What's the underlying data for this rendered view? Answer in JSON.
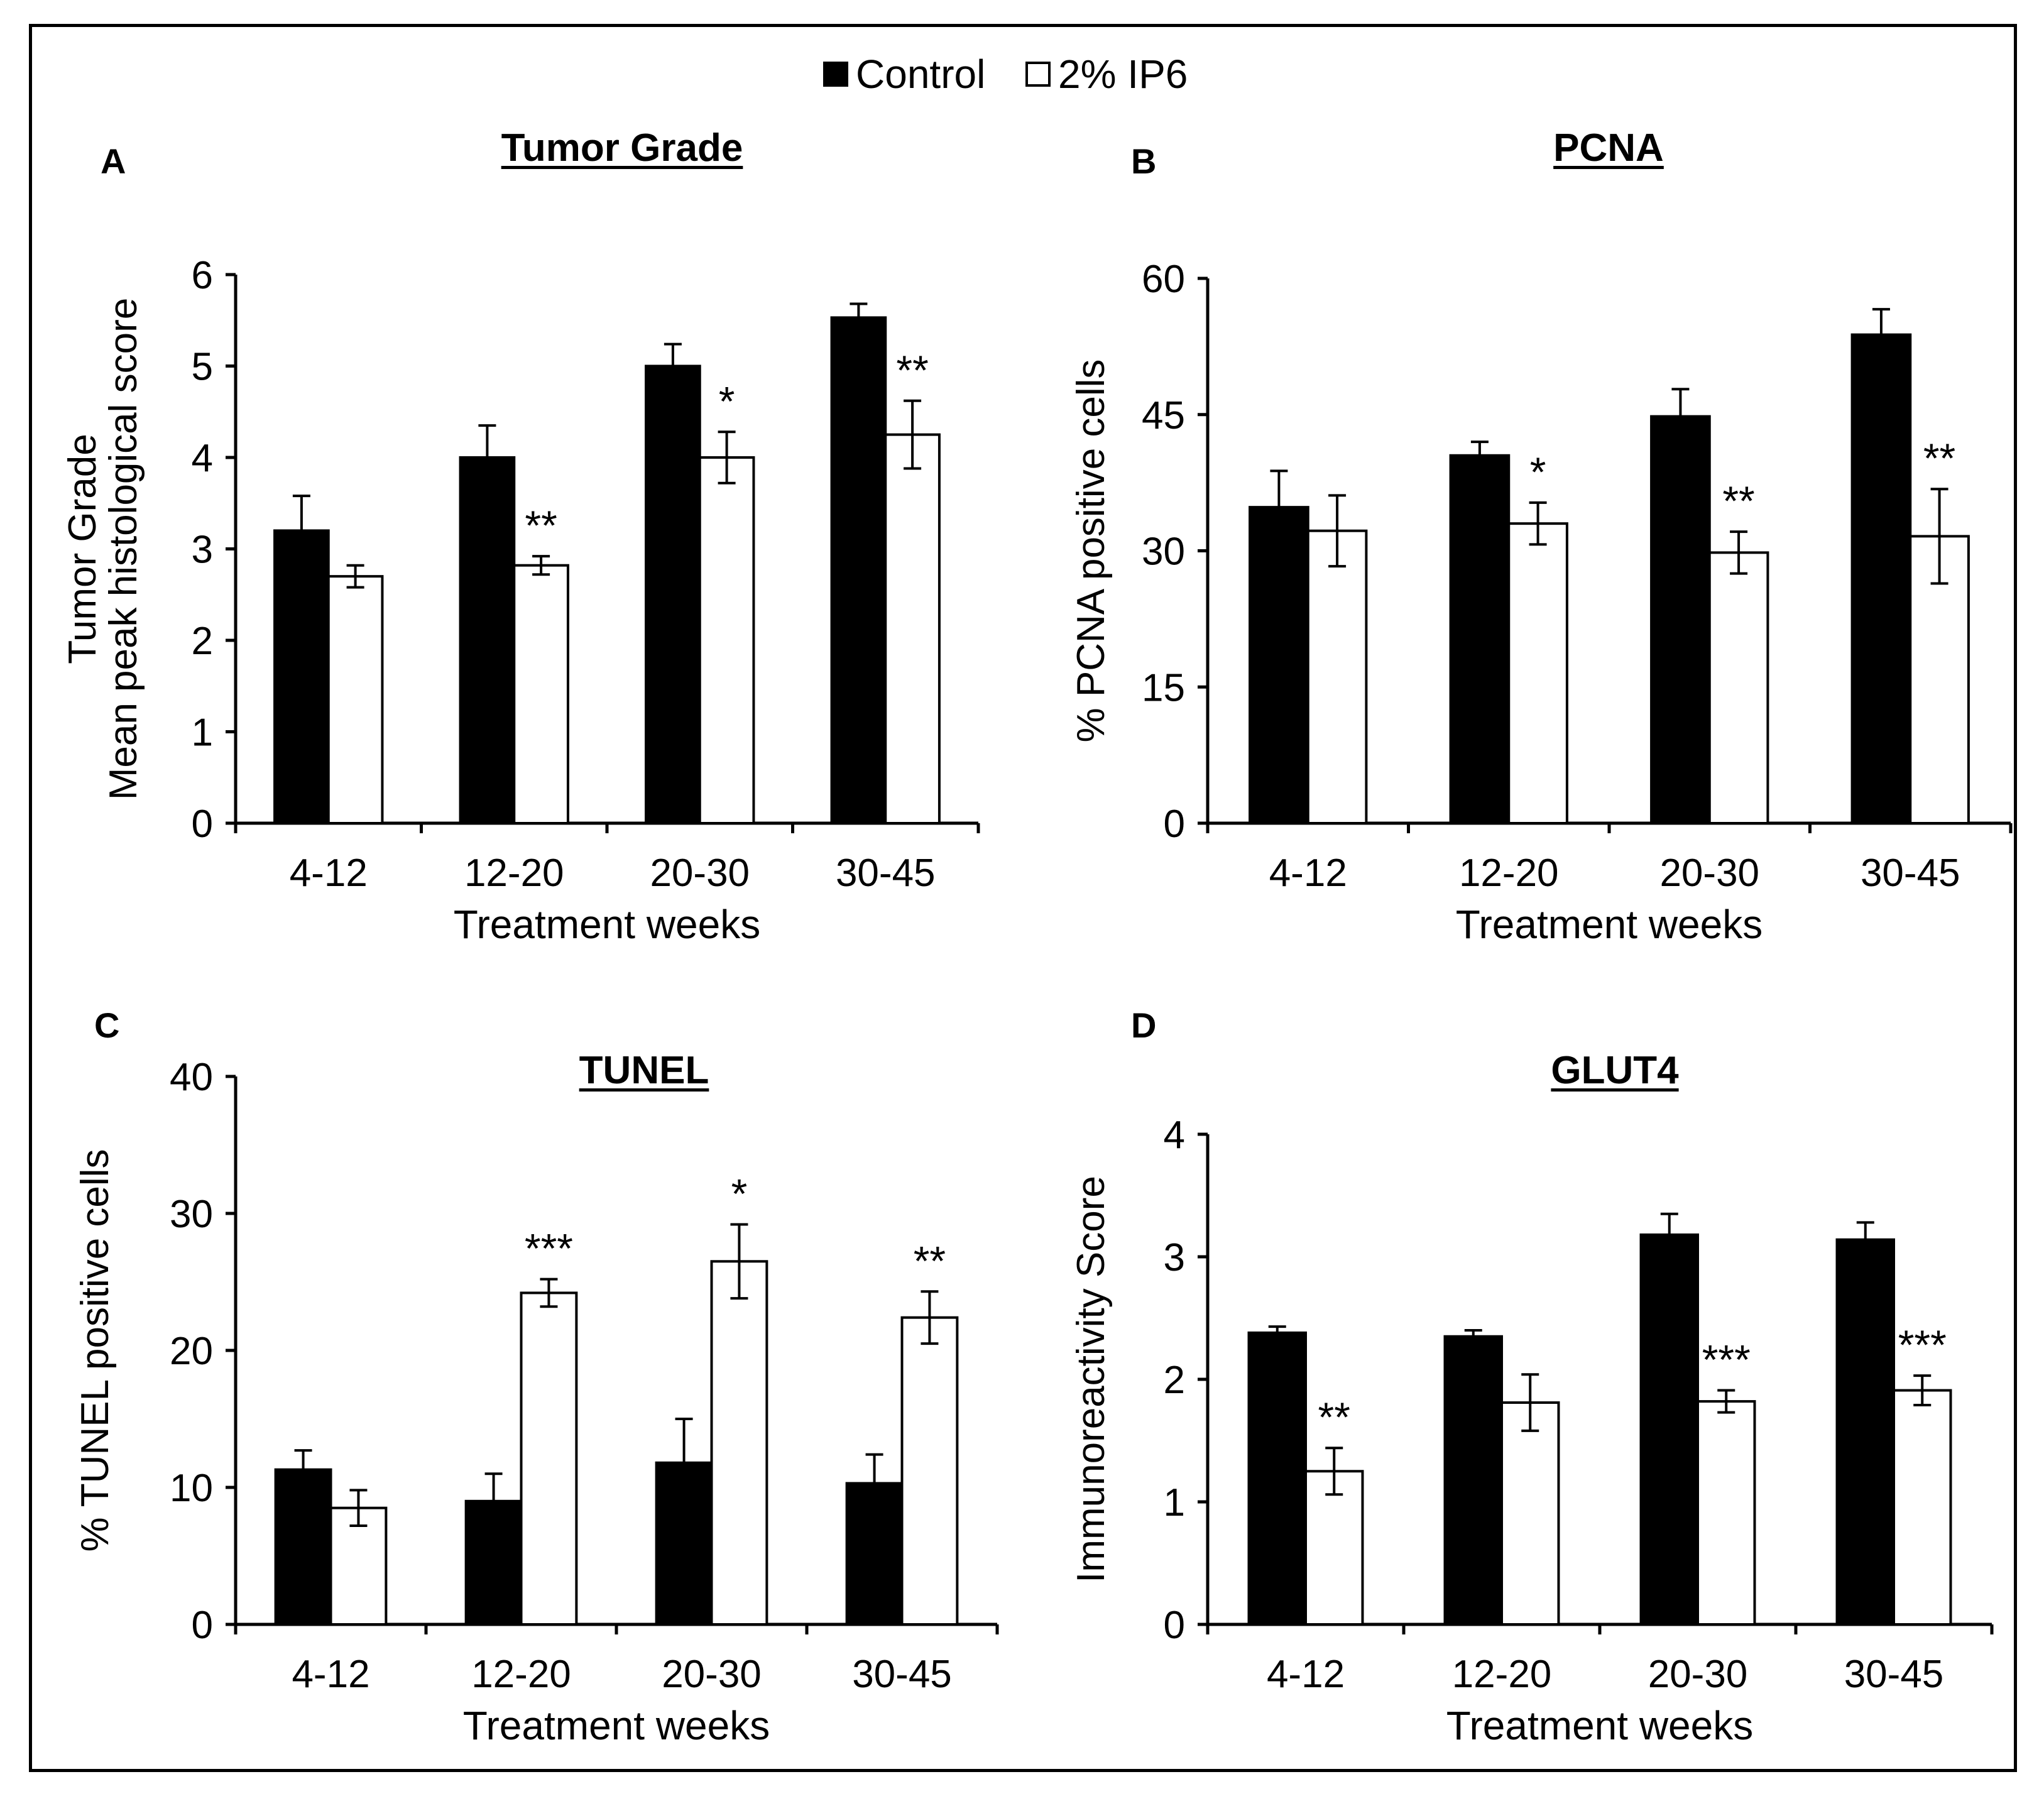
{
  "legend": {
    "control_label": "Control",
    "ip6_label": "2% IP6"
  },
  "colors": {
    "control": "#000000",
    "ip6": "#ffffff",
    "axis": "#000000"
  },
  "chart_data": [
    {
      "letter": "A",
      "type": "bar",
      "title": "Tumor Grade",
      "ylabel_lines": [
        "Tumor Grade",
        "Mean peak histological score"
      ],
      "xlabel": "Treatment weeks",
      "categories": [
        "4-12",
        "12-20",
        "20-30",
        "30-45"
      ],
      "ylim": [
        0,
        6
      ],
      "yticks": [
        0,
        1,
        2,
        3,
        4,
        5,
        6
      ],
      "series": [
        {
          "name": "Control",
          "values": [
            3.2,
            4.0,
            5.0,
            5.53
          ],
          "errors": [
            0.38,
            0.35,
            0.24,
            0.15
          ]
        },
        {
          "name": "2% IP6",
          "values": [
            2.7,
            2.82,
            4.0,
            4.25
          ],
          "errors": [
            0.12,
            0.1,
            0.28,
            0.37
          ]
        }
      ],
      "significance": [
        "",
        "**",
        "*",
        "**"
      ]
    },
    {
      "letter": "B",
      "type": "bar",
      "title": "PCNA",
      "ylabel_lines": [
        "% PCNA positive cells"
      ],
      "xlabel": "Treatment weeks",
      "categories": [
        "4-12",
        "12-20",
        "20-30",
        "30-45"
      ],
      "ylim": [
        0,
        60
      ],
      "yticks": [
        0,
        15,
        30,
        45,
        60
      ],
      "series": [
        {
          "name": "Control",
          "values": [
            34.8,
            40.5,
            44.8,
            53.8
          ],
          "errors": [
            4.0,
            1.5,
            3.0,
            2.8
          ]
        },
        {
          "name": "2% IP6",
          "values": [
            32.2,
            33.0,
            29.8,
            31.6
          ],
          "errors": [
            3.9,
            2.3,
            2.3,
            5.2
          ]
        }
      ],
      "significance": [
        "",
        "*",
        "**",
        "**"
      ]
    },
    {
      "letter": "C",
      "type": "bar",
      "title": "TUNEL",
      "ylabel_lines": [
        "% TUNEL positive cells"
      ],
      "xlabel": "Treatment weeks",
      "categories": [
        "4-12",
        "12-20",
        "20-30",
        "30-45"
      ],
      "ylim": [
        0,
        40
      ],
      "yticks": [
        0,
        10,
        20,
        30,
        40
      ],
      "series": [
        {
          "name": "Control",
          "values": [
            11.3,
            9.0,
            11.8,
            10.3
          ],
          "errors": [
            1.4,
            2.0,
            3.2,
            2.1
          ]
        },
        {
          "name": "2% IP6",
          "values": [
            8.5,
            24.2,
            26.5,
            22.4
          ],
          "errors": [
            1.3,
            1.0,
            2.7,
            1.9
          ]
        }
      ],
      "significance": [
        "",
        "***",
        "*",
        "**"
      ]
    },
    {
      "letter": "D",
      "type": "bar",
      "title": "GLUT4",
      "ylabel_lines": [
        "Immunoreactivity Score"
      ],
      "xlabel": "Treatment weeks",
      "categories": [
        "4-12",
        "12-20",
        "20-30",
        "30-45"
      ],
      "ylim": [
        0,
        4
      ],
      "yticks": [
        0,
        1,
        2,
        3,
        4
      ],
      "series": [
        {
          "name": "Control",
          "values": [
            2.38,
            2.35,
            3.18,
            3.14
          ],
          "errors": [
            0.05,
            0.05,
            0.17,
            0.14
          ]
        },
        {
          "name": "2% IP6",
          "values": [
            1.25,
            1.81,
            1.82,
            1.91
          ],
          "errors": [
            0.19,
            0.23,
            0.09,
            0.12
          ]
        }
      ],
      "significance": [
        "**",
        "",
        "***",
        "***"
      ]
    }
  ]
}
